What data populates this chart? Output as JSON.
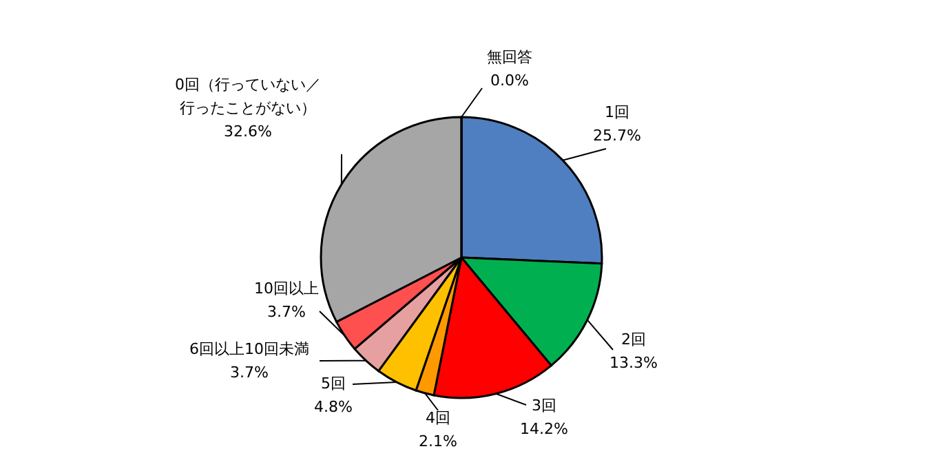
{
  "chart_data": {
    "type": "pie",
    "categories": [
      "1回",
      "2回",
      "3回",
      "4回",
      "5回",
      "6回以上10回未満",
      "10回以上",
      "0回（行っていない／行ったことがない）",
      "無回答"
    ],
    "values": [
      25.7,
      13.3,
      14.2,
      2.1,
      4.8,
      3.7,
      3.7,
      32.6,
      0.0
    ],
    "colors": [
      "#4f7fc0",
      "#00b050",
      "#ff0000",
      "#ff9900",
      "#ffc000",
      "#e6a0a0",
      "#ff5050",
      "#a6a6a6",
      "#ffffff"
    ],
    "value_labels": [
      "25.7%",
      "13.3%",
      "14.2%",
      "2.1%",
      "4.8%",
      "3.7%",
      "3.7%",
      "32.6%",
      "0.0%"
    ]
  }
}
